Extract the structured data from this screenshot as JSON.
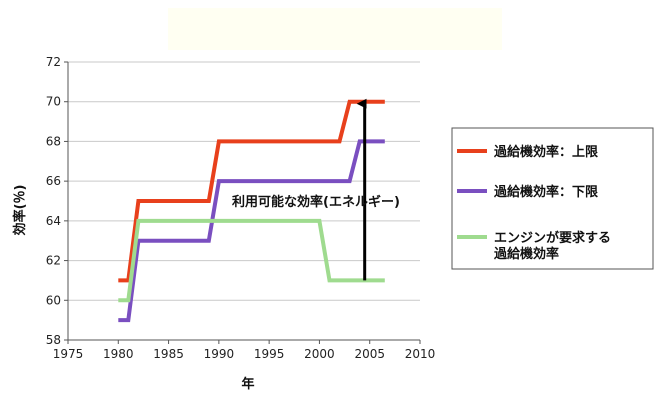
{
  "chart_data": {
    "type": "line",
    "xlabel": "年",
    "ylabel": "効率(％)",
    "xlim": [
      1975,
      2010
    ],
    "ylim": [
      58,
      72
    ],
    "x_ticks": [
      1975,
      1980,
      1985,
      1990,
      1995,
      2000,
      2005,
      2010
    ],
    "y_ticks": [
      58,
      60,
      62,
      64,
      66,
      68,
      70,
      72
    ],
    "grid": "horizontal",
    "legend_position": "right",
    "series": [
      {
        "name": "過給機効率：上限",
        "color": "#e8401c",
        "x": [
          1980,
          1981,
          1982,
          1989,
          1990,
          2002,
          2003,
          2006.5
        ],
        "y": [
          61,
          61,
          65,
          65,
          68,
          68,
          70,
          70
        ]
      },
      {
        "name": "過給機効率：下限",
        "color": "#7a4fc0",
        "x": [
          1980,
          1981,
          1982,
          1989,
          1990,
          2003,
          2004,
          2006.5
        ],
        "y": [
          59,
          59,
          63,
          63,
          66,
          66,
          68,
          68
        ]
      },
      {
        "name": "エンジンが要求する\n過給機効率",
        "color": "#9fdb8f",
        "x": [
          1980,
          1981,
          1982,
          2000,
          2001,
          2006.5
        ],
        "y": [
          60,
          60,
          64,
          64,
          61,
          61
        ]
      }
    ],
    "annotations": [
      {
        "text": "利用可能な効率(エネルギー)",
        "arrow_x": 2004.5,
        "arrow_from_y": 61,
        "arrow_to_y": 70
      }
    ]
  }
}
